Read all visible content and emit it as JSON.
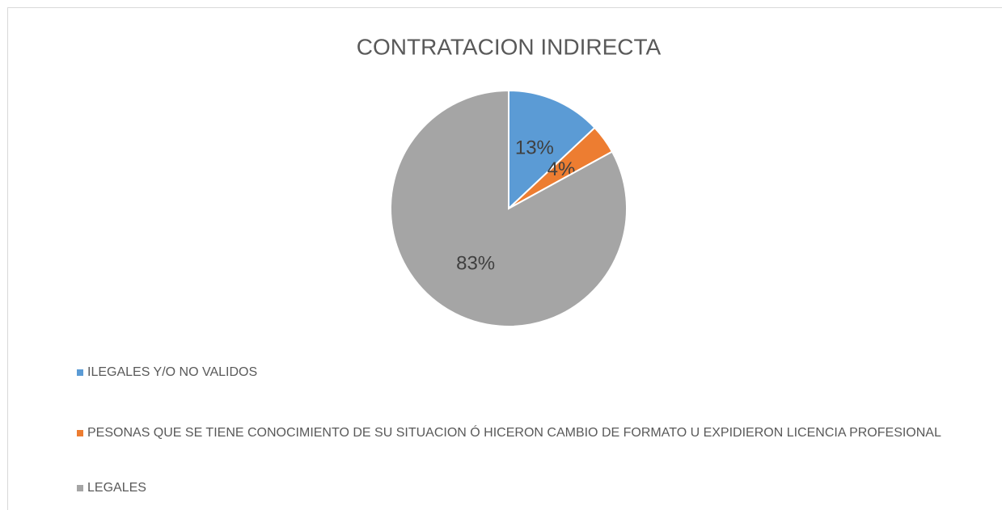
{
  "chart_data": {
    "type": "pie",
    "title": "CONTRATACION INDIRECTA",
    "categories": [
      "ILEGALES Y/O NO VALIDOS",
      "PESONAS QUE SE TIENE CONOCIMIENTO DE SU SITUACION Ó HICERON CAMBIO DE FORMATO U EXPIDIERON LICENCIA PROFESIONAL",
      "LEGALES"
    ],
    "values": [
      13,
      4,
      83
    ],
    "value_labels": [
      "13%",
      "4%",
      "83%"
    ],
    "colors": [
      "#5b9bd5",
      "#ed7d31",
      "#a5a5a5"
    ],
    "legend": "bottom"
  }
}
